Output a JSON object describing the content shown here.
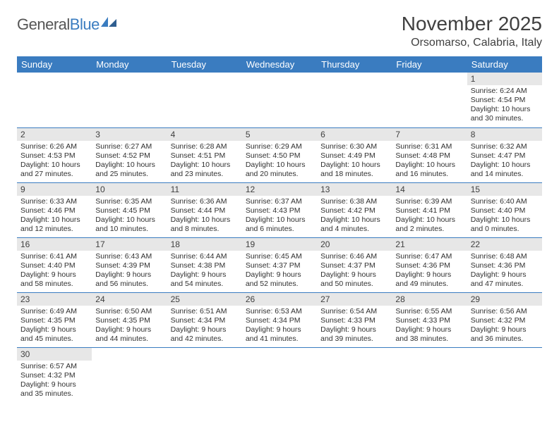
{
  "logo": {
    "text_gray": "General",
    "text_blue": "Blue"
  },
  "title": "November 2025",
  "location": "Orsomarso, Calabria, Italy",
  "colors": {
    "header_bg": "#3a7cc0",
    "header_text": "#ffffff",
    "daynum_bg": "#e7e7e7",
    "text": "#404040",
    "border": "#3a7cc0"
  },
  "days_of_week": [
    "Sunday",
    "Monday",
    "Tuesday",
    "Wednesday",
    "Thursday",
    "Friday",
    "Saturday"
  ],
  "weeks": [
    [
      {
        "n": "",
        "sr": "",
        "ss": "",
        "dl": ""
      },
      {
        "n": "",
        "sr": "",
        "ss": "",
        "dl": ""
      },
      {
        "n": "",
        "sr": "",
        "ss": "",
        "dl": ""
      },
      {
        "n": "",
        "sr": "",
        "ss": "",
        "dl": ""
      },
      {
        "n": "",
        "sr": "",
        "ss": "",
        "dl": ""
      },
      {
        "n": "",
        "sr": "",
        "ss": "",
        "dl": ""
      },
      {
        "n": "1",
        "sr": "6:24 AM",
        "ss": "4:54 PM",
        "dl": "10 hours and 30 minutes."
      }
    ],
    [
      {
        "n": "2",
        "sr": "6:26 AM",
        "ss": "4:53 PM",
        "dl": "10 hours and 27 minutes."
      },
      {
        "n": "3",
        "sr": "6:27 AM",
        "ss": "4:52 PM",
        "dl": "10 hours and 25 minutes."
      },
      {
        "n": "4",
        "sr": "6:28 AM",
        "ss": "4:51 PM",
        "dl": "10 hours and 23 minutes."
      },
      {
        "n": "5",
        "sr": "6:29 AM",
        "ss": "4:50 PM",
        "dl": "10 hours and 20 minutes."
      },
      {
        "n": "6",
        "sr": "6:30 AM",
        "ss": "4:49 PM",
        "dl": "10 hours and 18 minutes."
      },
      {
        "n": "7",
        "sr": "6:31 AM",
        "ss": "4:48 PM",
        "dl": "10 hours and 16 minutes."
      },
      {
        "n": "8",
        "sr": "6:32 AM",
        "ss": "4:47 PM",
        "dl": "10 hours and 14 minutes."
      }
    ],
    [
      {
        "n": "9",
        "sr": "6:33 AM",
        "ss": "4:46 PM",
        "dl": "10 hours and 12 minutes."
      },
      {
        "n": "10",
        "sr": "6:35 AM",
        "ss": "4:45 PM",
        "dl": "10 hours and 10 minutes."
      },
      {
        "n": "11",
        "sr": "6:36 AM",
        "ss": "4:44 PM",
        "dl": "10 hours and 8 minutes."
      },
      {
        "n": "12",
        "sr": "6:37 AM",
        "ss": "4:43 PM",
        "dl": "10 hours and 6 minutes."
      },
      {
        "n": "13",
        "sr": "6:38 AM",
        "ss": "4:42 PM",
        "dl": "10 hours and 4 minutes."
      },
      {
        "n": "14",
        "sr": "6:39 AM",
        "ss": "4:41 PM",
        "dl": "10 hours and 2 minutes."
      },
      {
        "n": "15",
        "sr": "6:40 AM",
        "ss": "4:40 PM",
        "dl": "10 hours and 0 minutes."
      }
    ],
    [
      {
        "n": "16",
        "sr": "6:41 AM",
        "ss": "4:40 PM",
        "dl": "9 hours and 58 minutes."
      },
      {
        "n": "17",
        "sr": "6:43 AM",
        "ss": "4:39 PM",
        "dl": "9 hours and 56 minutes."
      },
      {
        "n": "18",
        "sr": "6:44 AM",
        "ss": "4:38 PM",
        "dl": "9 hours and 54 minutes."
      },
      {
        "n": "19",
        "sr": "6:45 AM",
        "ss": "4:37 PM",
        "dl": "9 hours and 52 minutes."
      },
      {
        "n": "20",
        "sr": "6:46 AM",
        "ss": "4:37 PM",
        "dl": "9 hours and 50 minutes."
      },
      {
        "n": "21",
        "sr": "6:47 AM",
        "ss": "4:36 PM",
        "dl": "9 hours and 49 minutes."
      },
      {
        "n": "22",
        "sr": "6:48 AM",
        "ss": "4:36 PM",
        "dl": "9 hours and 47 minutes."
      }
    ],
    [
      {
        "n": "23",
        "sr": "6:49 AM",
        "ss": "4:35 PM",
        "dl": "9 hours and 45 minutes."
      },
      {
        "n": "24",
        "sr": "6:50 AM",
        "ss": "4:35 PM",
        "dl": "9 hours and 44 minutes."
      },
      {
        "n": "25",
        "sr": "6:51 AM",
        "ss": "4:34 PM",
        "dl": "9 hours and 42 minutes."
      },
      {
        "n": "26",
        "sr": "6:53 AM",
        "ss": "4:34 PM",
        "dl": "9 hours and 41 minutes."
      },
      {
        "n": "27",
        "sr": "6:54 AM",
        "ss": "4:33 PM",
        "dl": "9 hours and 39 minutes."
      },
      {
        "n": "28",
        "sr": "6:55 AM",
        "ss": "4:33 PM",
        "dl": "9 hours and 38 minutes."
      },
      {
        "n": "29",
        "sr": "6:56 AM",
        "ss": "4:32 PM",
        "dl": "9 hours and 36 minutes."
      }
    ],
    [
      {
        "n": "30",
        "sr": "6:57 AM",
        "ss": "4:32 PM",
        "dl": "9 hours and 35 minutes."
      },
      {
        "n": "",
        "sr": "",
        "ss": "",
        "dl": ""
      },
      {
        "n": "",
        "sr": "",
        "ss": "",
        "dl": ""
      },
      {
        "n": "",
        "sr": "",
        "ss": "",
        "dl": ""
      },
      {
        "n": "",
        "sr": "",
        "ss": "",
        "dl": ""
      },
      {
        "n": "",
        "sr": "",
        "ss": "",
        "dl": ""
      },
      {
        "n": "",
        "sr": "",
        "ss": "",
        "dl": ""
      }
    ]
  ],
  "labels": {
    "sunrise": "Sunrise: ",
    "sunset": "Sunset: ",
    "daylight": "Daylight: "
  }
}
